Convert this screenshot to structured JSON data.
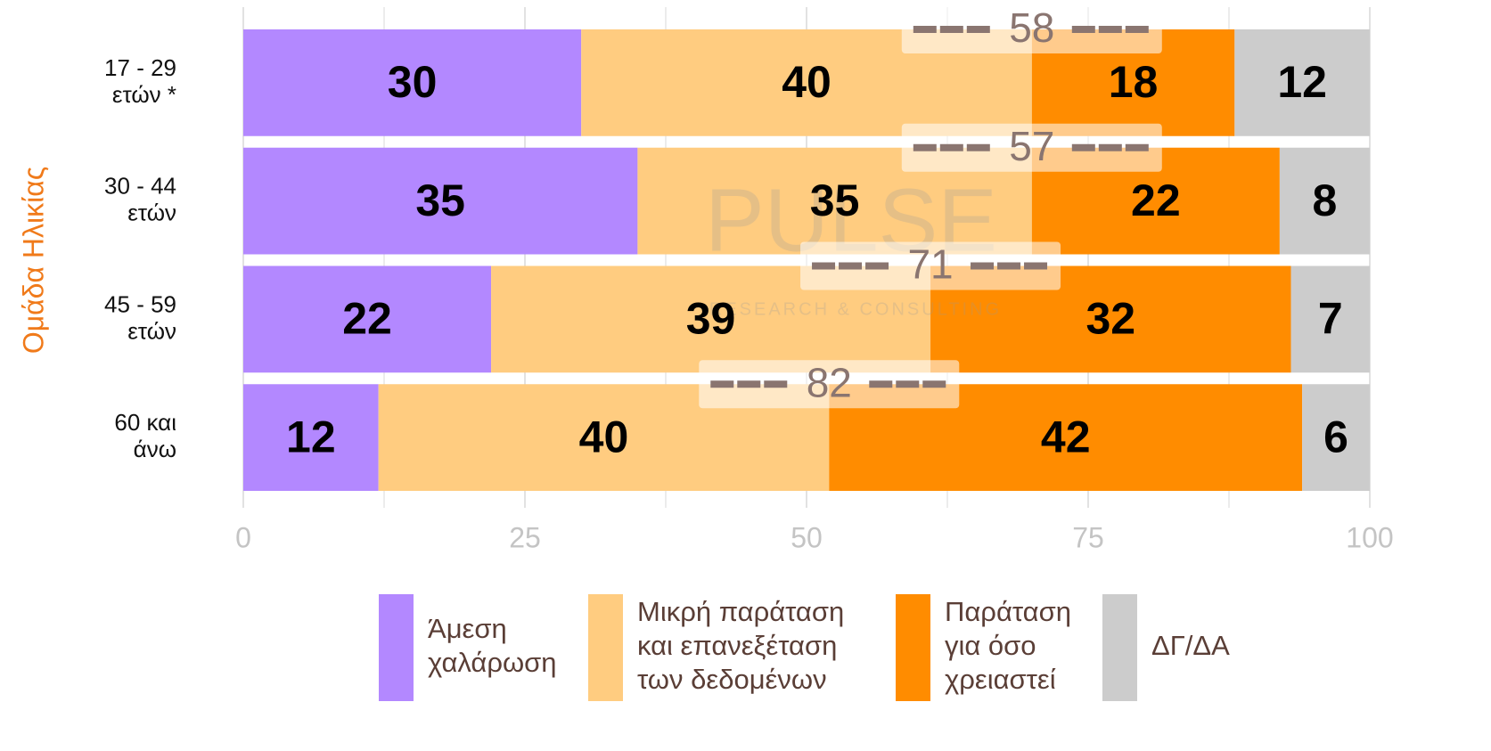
{
  "chart_data": {
    "type": "stacked_barh",
    "y_label": "Ομάδα Ηλικίας",
    "categories": [
      [
        "17 - 29",
        "ετών *"
      ],
      [
        "30 - 44",
        "ετών"
      ],
      [
        "45 - 59",
        "ετών"
      ],
      [
        "60 και",
        "άνω"
      ]
    ],
    "series": [
      {
        "name": [
          "Άμεση",
          "χαλάρωση"
        ],
        "color": "#b388ff",
        "values": [
          30,
          35,
          22,
          12
        ]
      },
      {
        "name": [
          "Μικρή παράταση",
          "και επανεξέταση",
          "των δεδομένων"
        ],
        "color": "#ffcc80",
        "values": [
          40,
          35,
          39,
          40
        ]
      },
      {
        "name": [
          "Παράταση",
          "για όσο",
          "χρειαστεί"
        ],
        "color": "#ff8c00",
        "values": [
          18,
          22,
          32,
          42
        ]
      },
      {
        "name": [
          "ΔΓ/ΔΑ"
        ],
        "color": "#cccccc",
        "values": [
          12,
          8,
          7,
          6
        ]
      }
    ],
    "annotations": [
      58,
      57,
      71,
      82
    ],
    "xlim": [
      0,
      100
    ],
    "xticks": [
      0,
      25,
      50,
      75,
      100
    ],
    "minor_grid": [
      12.5,
      37.5,
      62.5,
      87.5
    ],
    "grid": true,
    "watermark": [
      "PULSE",
      "RESEARCH & CONSULTING"
    ]
  }
}
